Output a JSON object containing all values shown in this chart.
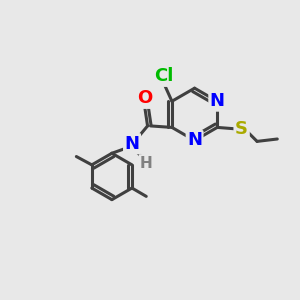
{
  "bg_color": "#e8e8e8",
  "bond_color": "#404040",
  "bond_width": 2.2,
  "atoms": {
    "Cl": {
      "color": "#00bb00",
      "fontsize": 13,
      "fontweight": "bold"
    },
    "O": {
      "color": "#ff0000",
      "fontsize": 13,
      "fontweight": "bold"
    },
    "N": {
      "color": "#0000ff",
      "fontsize": 13,
      "fontweight": "bold"
    },
    "S": {
      "color": "#aaaa00",
      "fontsize": 13,
      "fontweight": "bold"
    },
    "H": {
      "color": "#808080",
      "fontsize": 11,
      "fontweight": "bold"
    }
  }
}
